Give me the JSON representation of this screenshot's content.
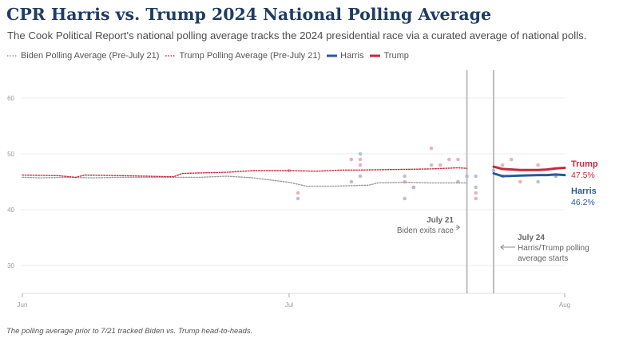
{
  "header": {
    "title": "CPR Harris vs. Trump 2024 National Polling Average",
    "subtitle": "The Cook Political Report's national polling average tracks the 2024 presidential race via a curated average of national polls."
  },
  "legend": [
    {
      "label": "Biden Polling Average (Pre-July 21)",
      "style": "dotted",
      "color": "#9a9a9a"
    },
    {
      "label": "Trump Polling Average (Pre-July 21)",
      "style": "dotted",
      "color": "#c8283c"
    },
    {
      "label": "Harris",
      "style": "solid",
      "color": "#2a5a9a"
    },
    {
      "label": "Trump",
      "style": "solid",
      "color": "#c8283c"
    }
  ],
  "footnote": "The polling average prior to 7/21 tracked Biden vs. Trump head-to-heads.",
  "chart_data": {
    "type": "line",
    "title": "CPR Harris vs. Trump 2024 National Polling Average",
    "x_ticks": [
      {
        "label": "Jun",
        "date": "2024-06-01"
      },
      {
        "label": "Jul",
        "date": "2024-07-01"
      },
      {
        "label": "Aug",
        "date": "2024-08-01"
      }
    ],
    "xlim": [
      "2024-06-01",
      "2024-08-01"
    ],
    "y_ticks": [
      30,
      40,
      50,
      60
    ],
    "ylim": [
      25,
      65
    ],
    "grid": true,
    "colors": {
      "harris": "#2a5a9a",
      "trump": "#c8283c",
      "biden": "#9a9a9a",
      "event_line": "#bdbdbd"
    },
    "series": [
      {
        "name": "Biden Polling Average (Pre-July 21)",
        "style": "dotted",
        "color": "#9a9a9a",
        "points": [
          [
            "2024-06-01",
            45.8
          ],
          [
            "2024-06-03",
            45.7
          ],
          [
            "2024-06-06",
            45.8
          ],
          [
            "2024-06-09",
            45.7
          ],
          [
            "2024-06-12",
            45.8
          ],
          [
            "2024-06-15",
            45.8
          ],
          [
            "2024-06-18",
            45.8
          ],
          [
            "2024-06-21",
            45.8
          ],
          [
            "2024-06-24",
            46.0
          ],
          [
            "2024-06-27",
            45.7
          ],
          [
            "2024-06-29",
            45.3
          ],
          [
            "2024-07-01",
            44.9
          ],
          [
            "2024-07-03",
            44.2
          ],
          [
            "2024-07-06",
            44.2
          ],
          [
            "2024-07-08",
            44.3
          ],
          [
            "2024-07-10",
            44.4
          ],
          [
            "2024-07-11",
            44.8
          ],
          [
            "2024-07-14",
            44.9
          ],
          [
            "2024-07-17",
            44.8
          ],
          [
            "2024-07-19",
            44.8
          ],
          [
            "2024-07-21",
            44.8
          ]
        ]
      },
      {
        "name": "Trump Polling Average (Pre-July 21)",
        "style": "dotted",
        "color": "#c8283c",
        "points": [
          [
            "2024-06-01",
            46.2
          ],
          [
            "2024-06-05",
            46.1
          ],
          [
            "2024-06-07",
            45.8
          ],
          [
            "2024-06-08",
            46.2
          ],
          [
            "2024-06-12",
            46.1
          ],
          [
            "2024-06-15",
            46.0
          ],
          [
            "2024-06-18",
            45.9
          ],
          [
            "2024-06-19",
            46.5
          ],
          [
            "2024-06-24",
            46.7
          ],
          [
            "2024-06-27",
            47.0
          ],
          [
            "2024-07-01",
            47.0
          ],
          [
            "2024-07-04",
            46.9
          ],
          [
            "2024-07-07",
            47.1
          ],
          [
            "2024-07-09",
            47.1
          ],
          [
            "2024-07-13",
            47.2
          ],
          [
            "2024-07-17",
            47.3
          ],
          [
            "2024-07-20",
            47.5
          ],
          [
            "2024-07-21",
            47.4
          ]
        ]
      },
      {
        "name": "Harris",
        "style": "solid",
        "color": "#2a5a9a",
        "points": [
          [
            "2024-07-24",
            46.5
          ],
          [
            "2024-07-25",
            46.0
          ],
          [
            "2024-07-27",
            46.1
          ],
          [
            "2024-07-29",
            46.2
          ],
          [
            "2024-07-30",
            46.2
          ],
          [
            "2024-07-31",
            46.3
          ],
          [
            "2024-08-01",
            46.2
          ]
        ]
      },
      {
        "name": "Trump",
        "style": "solid",
        "color": "#c8283c",
        "points": [
          [
            "2024-07-24",
            47.7
          ],
          [
            "2024-07-25",
            47.3
          ],
          [
            "2024-07-27",
            47.1
          ],
          [
            "2024-07-29",
            47.1
          ],
          [
            "2024-07-30",
            47.2
          ],
          [
            "2024-07-31",
            47.4
          ],
          [
            "2024-08-01",
            47.5
          ]
        ]
      }
    ],
    "polls": [
      {
        "candidate": "trump",
        "points": [
          [
            "2024-07-01",
            47
          ],
          [
            "2024-07-02",
            43
          ],
          [
            "2024-07-08",
            49
          ],
          [
            "2024-07-09",
            49
          ],
          [
            "2024-07-09",
            48
          ],
          [
            "2024-07-14",
            45
          ],
          [
            "2024-07-15",
            44
          ],
          [
            "2024-07-17",
            51
          ],
          [
            "2024-07-18",
            48
          ],
          [
            "2024-07-19",
            49
          ],
          [
            "2024-07-20",
            49
          ],
          [
            "2024-07-22",
            43
          ],
          [
            "2024-07-22",
            42
          ],
          [
            "2024-07-25",
            48
          ],
          [
            "2024-07-26",
            49
          ],
          [
            "2024-07-27",
            45
          ],
          [
            "2024-07-29",
            48
          ],
          [
            "2024-07-31",
            46
          ]
        ]
      },
      {
        "candidate": "harris",
        "points": [
          [
            "2024-07-02",
            42
          ],
          [
            "2024-07-08",
            45
          ],
          [
            "2024-07-09",
            50
          ],
          [
            "2024-07-09",
            46
          ],
          [
            "2024-07-14",
            42
          ],
          [
            "2024-07-14",
            46
          ],
          [
            "2024-07-15",
            44
          ],
          [
            "2024-07-17",
            48
          ],
          [
            "2024-07-20",
            45
          ],
          [
            "2024-07-21",
            46
          ],
          [
            "2024-07-22",
            46
          ],
          [
            "2024-07-22",
            44
          ],
          [
            "2024-07-24",
            47
          ],
          [
            "2024-07-25",
            46
          ],
          [
            "2024-07-29",
            45
          ],
          [
            "2024-07-31",
            46
          ]
        ]
      }
    ],
    "event_lines": [
      "2024-07-21",
      "2024-07-24"
    ],
    "annotations": [
      {
        "date_line": "2024-07-21",
        "title": "July 21",
        "text": "Biden exits race",
        "arrow": "right"
      },
      {
        "date_line": "2024-07-24",
        "title": "July 24",
        "text": "Harris/Trump polling average starts",
        "arrow": "left"
      }
    ],
    "end_labels": [
      {
        "name": "Trump",
        "value_text": "47.5%",
        "value": 47.5,
        "color": "#c8283c"
      },
      {
        "name": "Harris",
        "value_text": "46.2%",
        "value": 46.2,
        "color": "#2a5a9a"
      }
    ]
  }
}
